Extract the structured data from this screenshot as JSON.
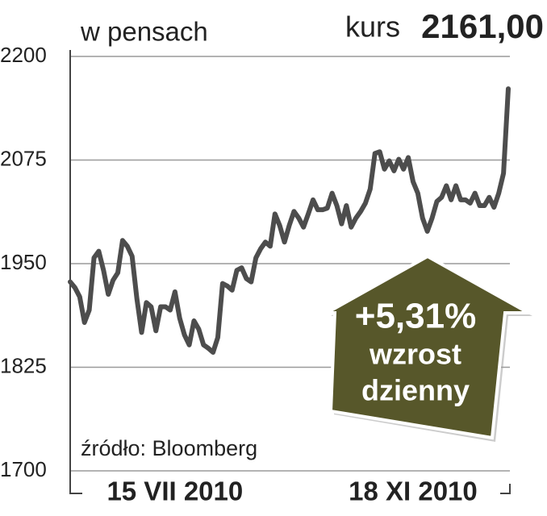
{
  "chart_data": {
    "type": "line",
    "subtitle": "w pensach",
    "price_caption": "kurs",
    "price_label": "2161,00",
    "source": "źródło: Bloomberg",
    "annotation": {
      "change": "+5,31%",
      "line1": "wzrost",
      "line2": "dzienny"
    },
    "categories": [
      null,
      null,
      null,
      null,
      null,
      null,
      null,
      null,
      null,
      null,
      null,
      null,
      null,
      null,
      null,
      null,
      null,
      null,
      null,
      null,
      null,
      null,
      "15 VII 2010",
      null,
      null,
      null,
      null,
      null,
      null,
      null,
      null,
      null,
      null,
      null,
      null,
      null,
      null,
      null,
      null,
      null,
      null,
      null,
      null,
      null,
      null,
      null,
      null,
      null,
      null,
      null,
      null,
      null,
      null,
      null,
      null,
      null,
      null,
      null,
      null,
      null,
      null,
      null,
      null,
      null,
      null,
      null,
      null,
      null,
      null,
      null,
      null,
      null,
      "18 XI 2010",
      null,
      null,
      null,
      null,
      null,
      null,
      null,
      null,
      null,
      null,
      null,
      null,
      null,
      null,
      null,
      null,
      null,
      null,
      null,
      null
    ],
    "series": [
      {
        "color": "#4d4d4d",
        "values": [
          1928,
          1921,
          1910,
          1879,
          1894,
          1957,
          1965,
          1942,
          1913,
          1930,
          1939,
          1978,
          1971,
          1959,
          1908,
          1867,
          1903,
          1898,
          1869,
          1898,
          1898,
          1894,
          1916,
          1884,
          1864,
          1852,
          1881,
          1871,
          1852,
          1848,
          1843,
          1861,
          1926,
          1923,
          1918,
          1942,
          1945,
          1932,
          1928,
          1957,
          1968,
          1976,
          1971,
          2010,
          1996,
          1976,
          1996,
          2013,
          2005,
          1994,
          2010,
          2027,
          2015,
          2015,
          2017,
          2035,
          2020,
          1998,
          2020,
          1994,
          2005,
          2013,
          2023,
          2040,
          2083,
          2085,
          2064,
          2074,
          2062,
          2076,
          2064,
          2078,
          2049,
          2035,
          2005,
          1989,
          2005,
          2025,
          2030,
          2044,
          2027,
          2044,
          2027,
          2027,
          2023,
          2035,
          2020,
          2020,
          2030,
          2018,
          2035,
          2059,
          2161
        ]
      }
    ],
    "ylim": [
      1700,
      2200
    ],
    "yticks": [
      1700,
      1825,
      1950,
      2075,
      2200
    ],
    "grid": true
  }
}
